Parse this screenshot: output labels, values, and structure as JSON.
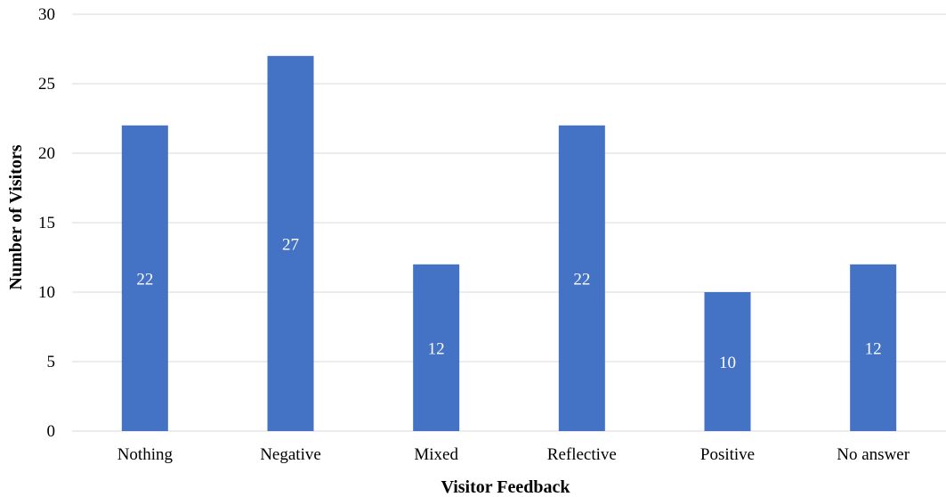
{
  "chart_data": {
    "type": "bar",
    "title": "",
    "xlabel": "Visitor Feedback",
    "ylabel": "Number of Visitors",
    "categories": [
      "Nothing",
      "Negative",
      "Mixed",
      "Reflective",
      "Positive",
      "No answer"
    ],
    "values": [
      22,
      27,
      12,
      22,
      10,
      12
    ],
    "ylim": [
      0,
      30
    ],
    "yticks": [
      0,
      5,
      10,
      15,
      20,
      25,
      30
    ],
    "grid": "horizontal",
    "legend": "none",
    "data_labels": true,
    "bar_color": "#4472c4",
    "data_label_color": "#ffffff",
    "grid_color": "#d9d9d9"
  }
}
